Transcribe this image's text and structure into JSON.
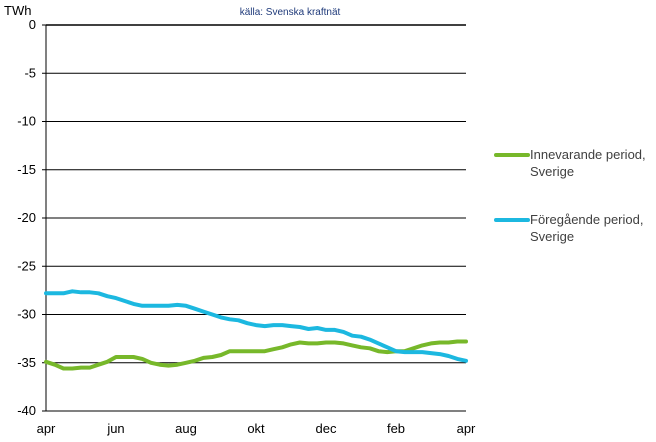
{
  "chart_data": {
    "type": "line",
    "source": "källa: Svenska kraftnät",
    "unit": "TWh",
    "ylim": [
      -40,
      0
    ],
    "yticks": [
      0,
      -5,
      -10,
      -15,
      -20,
      -25,
      -30,
      -35,
      -40
    ],
    "xlim": [
      0,
      24
    ],
    "xticks": [
      {
        "x": 0,
        "label": "apr"
      },
      {
        "x": 4,
        "label": "jun"
      },
      {
        "x": 8,
        "label": "aug"
      },
      {
        "x": 12,
        "label": "okt"
      },
      {
        "x": 16,
        "label": "dec"
      },
      {
        "x": 20,
        "label": "feb"
      },
      {
        "x": 24,
        "label": "apr"
      }
    ],
    "grid": true,
    "legend_position": "right",
    "series": [
      {
        "name": "Innevarande period, Sverige",
        "color": "#77b82a",
        "points": [
          [
            0,
            -34.9
          ],
          [
            0.5,
            -35.2
          ],
          [
            1,
            -35.6
          ],
          [
            1.5,
            -35.6
          ],
          [
            2,
            -35.5
          ],
          [
            2.5,
            -35.5
          ],
          [
            3,
            -35.2
          ],
          [
            3.5,
            -34.9
          ],
          [
            4,
            -34.4
          ],
          [
            4.5,
            -34.4
          ],
          [
            5,
            -34.4
          ],
          [
            5.5,
            -34.6
          ],
          [
            6,
            -35.0
          ],
          [
            6.5,
            -35.2
          ],
          [
            7,
            -35.3
          ],
          [
            7.5,
            -35.2
          ],
          [
            8,
            -35.0
          ],
          [
            8.5,
            -34.8
          ],
          [
            9,
            -34.5
          ],
          [
            9.5,
            -34.4
          ],
          [
            10,
            -34.2
          ],
          [
            10.5,
            -33.8
          ],
          [
            11,
            -33.8
          ],
          [
            11.5,
            -33.8
          ],
          [
            12,
            -33.8
          ],
          [
            12.5,
            -33.8
          ],
          [
            13,
            -33.6
          ],
          [
            13.5,
            -33.4
          ],
          [
            14,
            -33.1
          ],
          [
            14.5,
            -32.9
          ],
          [
            15,
            -33.0
          ],
          [
            15.5,
            -33.0
          ],
          [
            16,
            -32.9
          ],
          [
            16.5,
            -32.9
          ],
          [
            17,
            -33.0
          ],
          [
            17.5,
            -33.2
          ],
          [
            18,
            -33.4
          ],
          [
            18.5,
            -33.5
          ],
          [
            19,
            -33.8
          ],
          [
            19.5,
            -33.9
          ],
          [
            20,
            -33.8
          ],
          [
            20.5,
            -33.8
          ],
          [
            21,
            -33.5
          ],
          [
            21.5,
            -33.2
          ],
          [
            22,
            -33.0
          ],
          [
            22.5,
            -32.9
          ],
          [
            23,
            -32.9
          ],
          [
            23.5,
            -32.8
          ],
          [
            24,
            -32.8
          ]
        ]
      },
      {
        "name": "Föregående period, Sverige",
        "color": "#1cb8e0",
        "points": [
          [
            0,
            -27.8
          ],
          [
            0.5,
            -27.8
          ],
          [
            1,
            -27.8
          ],
          [
            1.5,
            -27.6
          ],
          [
            2,
            -27.7
          ],
          [
            2.5,
            -27.7
          ],
          [
            3,
            -27.8
          ],
          [
            3.5,
            -28.1
          ],
          [
            4,
            -28.3
          ],
          [
            4.5,
            -28.6
          ],
          [
            5,
            -28.9
          ],
          [
            5.5,
            -29.1
          ],
          [
            6,
            -29.1
          ],
          [
            6.5,
            -29.1
          ],
          [
            7,
            -29.1
          ],
          [
            7.5,
            -29.0
          ],
          [
            8,
            -29.1
          ],
          [
            8.5,
            -29.4
          ],
          [
            9,
            -29.7
          ],
          [
            9.5,
            -30.0
          ],
          [
            10,
            -30.3
          ],
          [
            10.5,
            -30.5
          ],
          [
            11,
            -30.6
          ],
          [
            11.5,
            -30.9
          ],
          [
            12,
            -31.1
          ],
          [
            12.5,
            -31.2
          ],
          [
            13,
            -31.1
          ],
          [
            13.5,
            -31.1
          ],
          [
            14,
            -31.2
          ],
          [
            14.5,
            -31.3
          ],
          [
            15,
            -31.5
          ],
          [
            15.5,
            -31.4
          ],
          [
            16,
            -31.6
          ],
          [
            16.5,
            -31.6
          ],
          [
            17,
            -31.8
          ],
          [
            17.5,
            -32.2
          ],
          [
            18,
            -32.3
          ],
          [
            18.5,
            -32.6
          ],
          [
            19,
            -33.0
          ],
          [
            19.5,
            -33.4
          ],
          [
            20,
            -33.8
          ],
          [
            20.5,
            -33.9
          ],
          [
            21,
            -33.9
          ],
          [
            21.5,
            -33.9
          ],
          [
            22,
            -34.0
          ],
          [
            22.5,
            -34.1
          ],
          [
            23,
            -34.3
          ],
          [
            23.5,
            -34.6
          ],
          [
            24,
            -34.8
          ]
        ]
      }
    ]
  }
}
